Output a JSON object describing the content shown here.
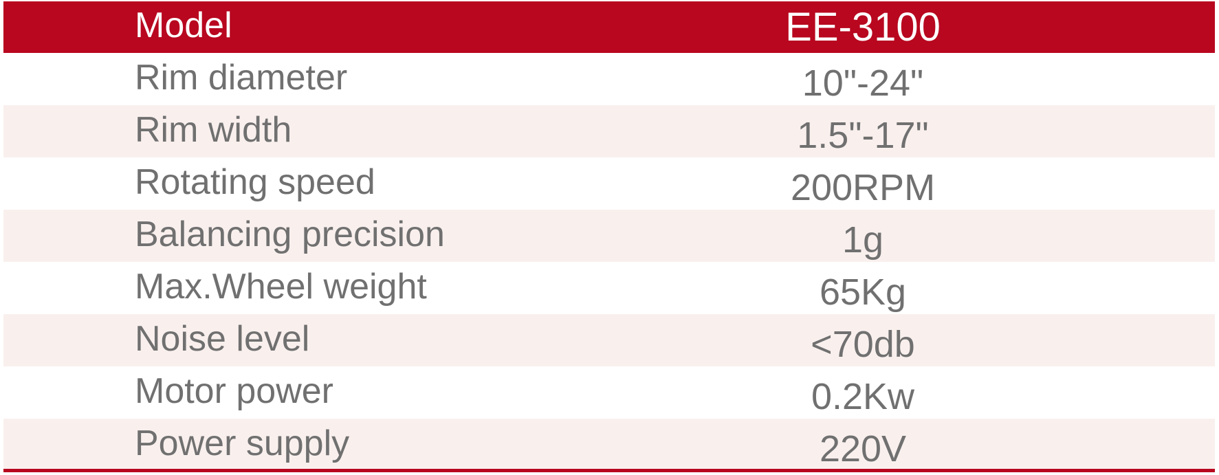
{
  "colors": {
    "header_bg": "#b8071f",
    "row_tint": "#f9f0ee",
    "row_white": "#ffffff",
    "text": "#707070",
    "header_text": "#ffffff",
    "rule": "#b8071f"
  },
  "table": {
    "header": {
      "label": "Model",
      "value": "EE-3100"
    },
    "rows": [
      {
        "label": "Rim diameter",
        "value": "10\"-24\""
      },
      {
        "label": "Rim width",
        "value": "1.5\"-17\""
      },
      {
        "label": "Rotating speed",
        "value": "200RPM"
      },
      {
        "label": "Balancing precision",
        "value": "1g"
      },
      {
        "label": "Max.Wheel weight",
        "value": "65Kg"
      },
      {
        "label": "Noise level",
        "value": "<70db"
      },
      {
        "label": "Motor power",
        "value": "0.2Kw"
      },
      {
        "label": "Power supply",
        "value": "220V"
      }
    ]
  }
}
